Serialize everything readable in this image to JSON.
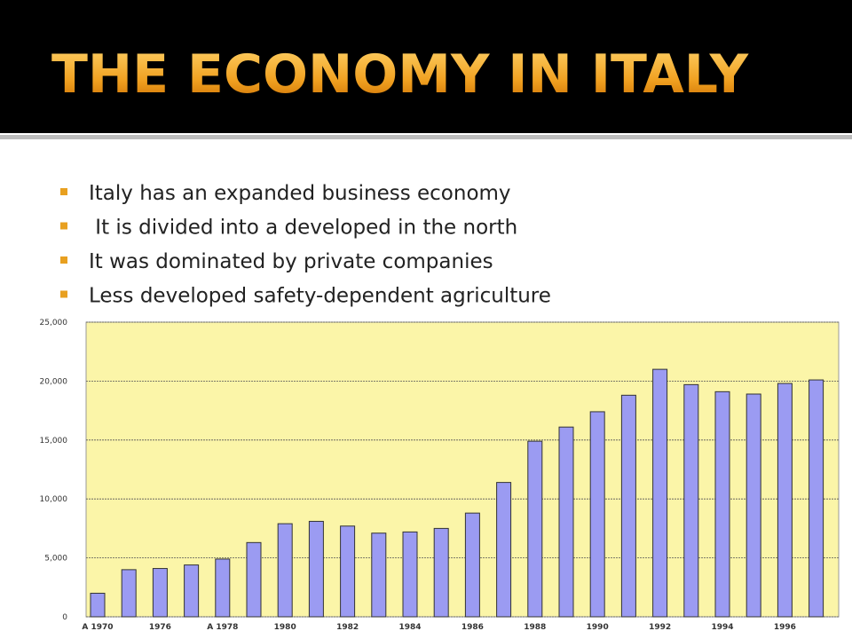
{
  "header": {
    "title": "THE ECONOMY IN ITALY"
  },
  "bullets": [
    "Italy has an expanded business economy",
    " It is divided into a developed in the north",
    "It was dominated by private companies",
    "Less developed safety-dependent agriculture"
  ],
  "chart_data": {
    "type": "bar",
    "categories": [
      "A 1970",
      null,
      "1976",
      null,
      "A 1978",
      null,
      "1980",
      null,
      "1982",
      null,
      "1984",
      null,
      "1986",
      null,
      "1988",
      null,
      "1990",
      null,
      "1992",
      null,
      "1994",
      null,
      "1996",
      null
    ],
    "values": [
      2000,
      4000,
      4100,
      4400,
      4900,
      6300,
      7900,
      8100,
      7700,
      7100,
      7200,
      7500,
      8800,
      11400,
      14900,
      16100,
      17400,
      18800,
      21000,
      19700,
      19100,
      18900,
      19800,
      20100
    ],
    "color": "#9b9bf2",
    "ylim": [
      0,
      25000
    ],
    "yticks": [
      0,
      {
        "value": 5000,
        "label": "5,000"
      },
      {
        "value": 10000,
        "label": "10,000"
      },
      {
        "value": 15000,
        "label": "15,000"
      },
      {
        "value": 20000,
        "label": "20,000"
      },
      {
        "value": 25000,
        "label": "25,000"
      }
    ],
    "grid": true
  }
}
